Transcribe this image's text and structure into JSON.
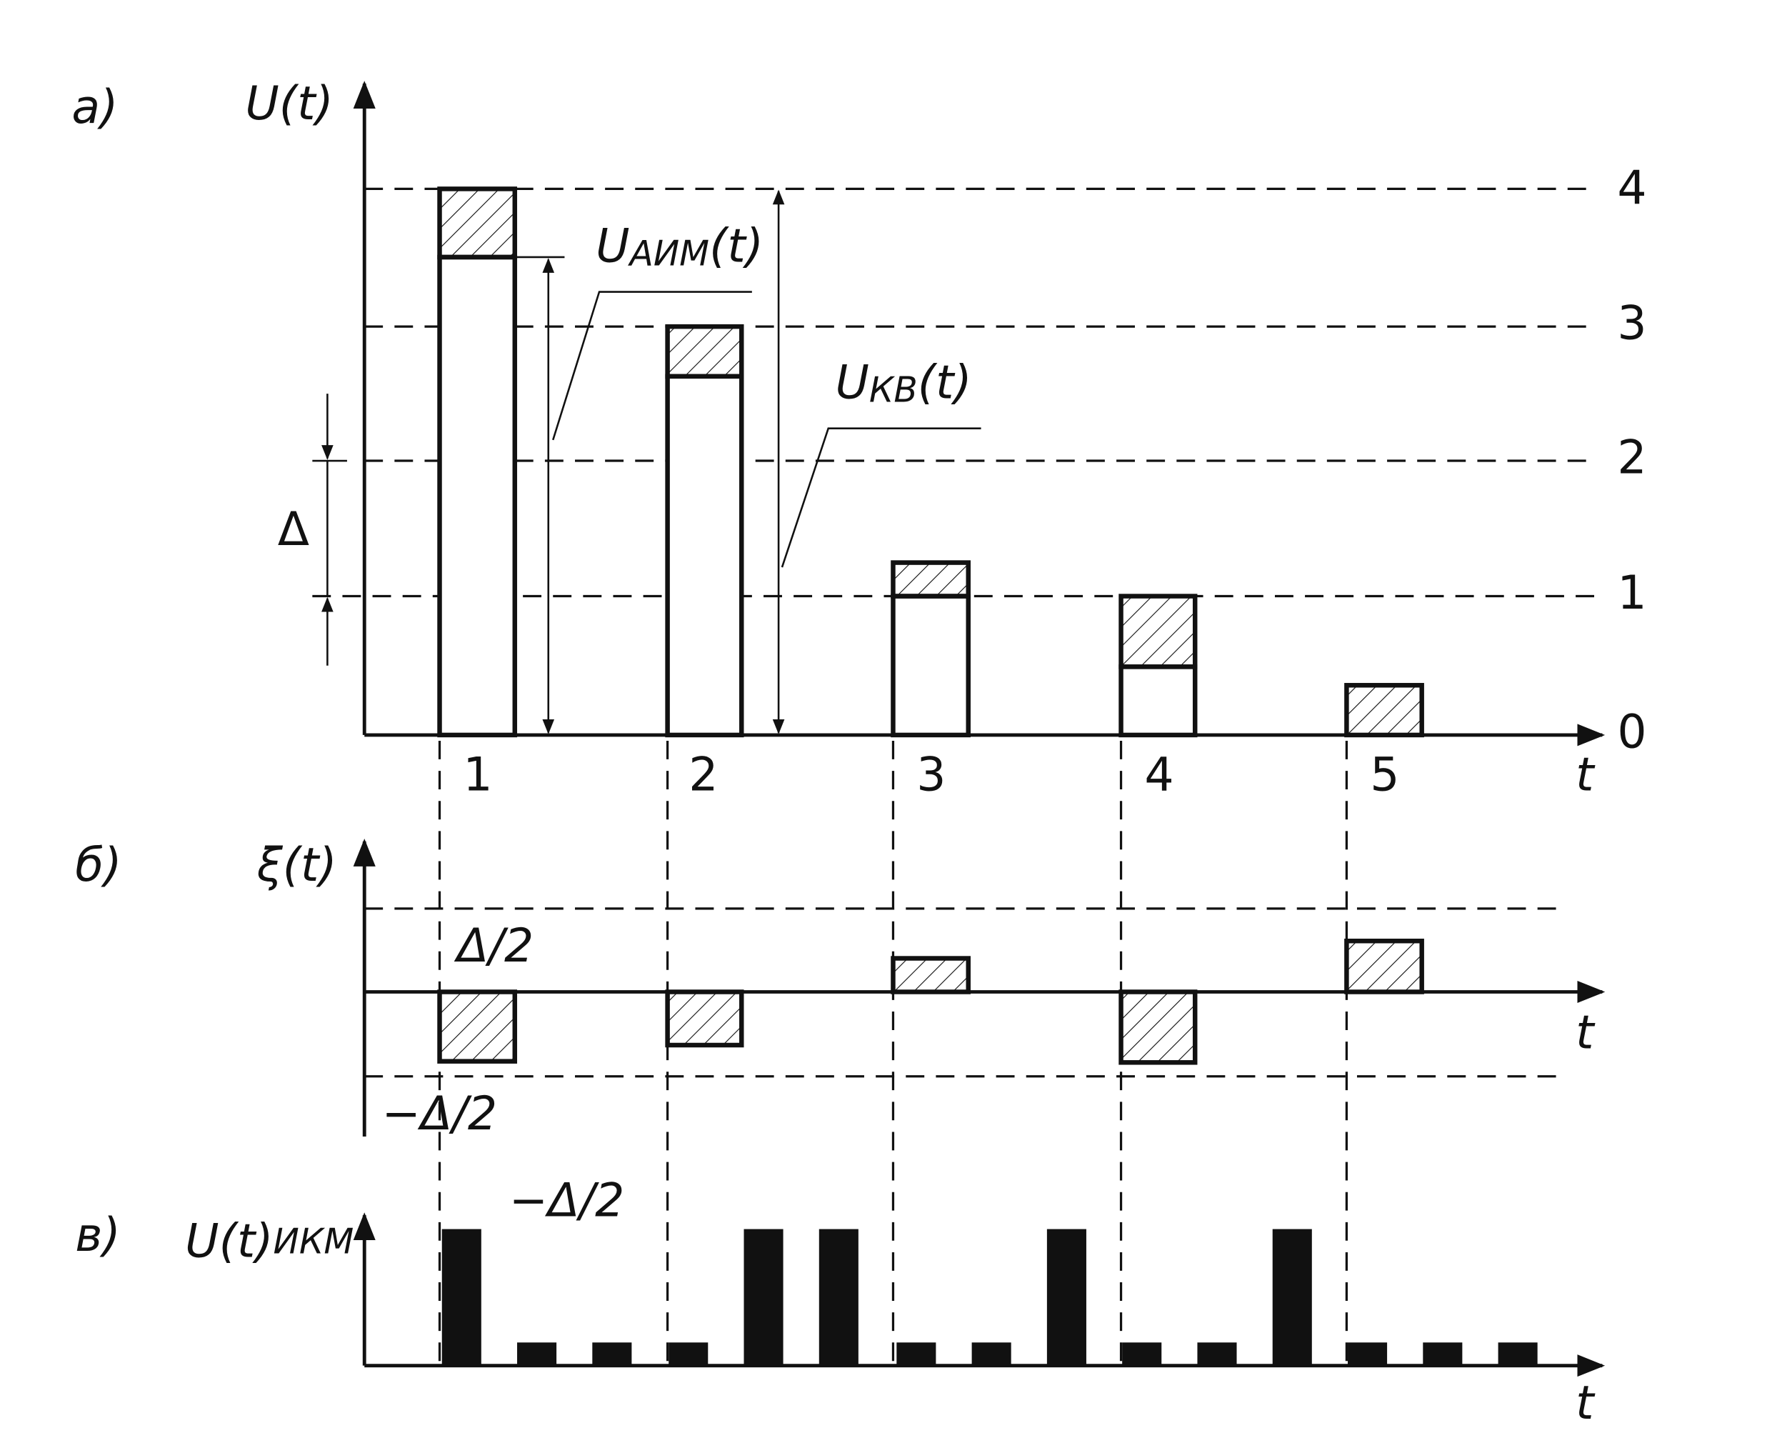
{
  "panels": {
    "a": "а)",
    "b": "б)",
    "c": "в)"
  },
  "axes": {
    "a_y": "U(t)",
    "a_x": "t",
    "b_y": "ξ(t)",
    "b_x": "t",
    "c_y": {
      "main": "U(t)",
      "sub": "ИКМ"
    },
    "c_x": "t"
  },
  "levels": [
    "0",
    "1",
    "2",
    "3",
    "4"
  ],
  "samples": [
    "1",
    "2",
    "3",
    "4",
    "5"
  ],
  "labels": {
    "delta": "Δ",
    "half": "Δ/2",
    "neg_half": "−Δ/2",
    "neg_half_stray": "−Δ/2",
    "u_aim": {
      "main": "U",
      "sub": "АИМ",
      "tail": "(t)"
    },
    "u_kv": {
      "main": "U",
      "sub": "КВ",
      "tail": "(t)"
    }
  }
}
